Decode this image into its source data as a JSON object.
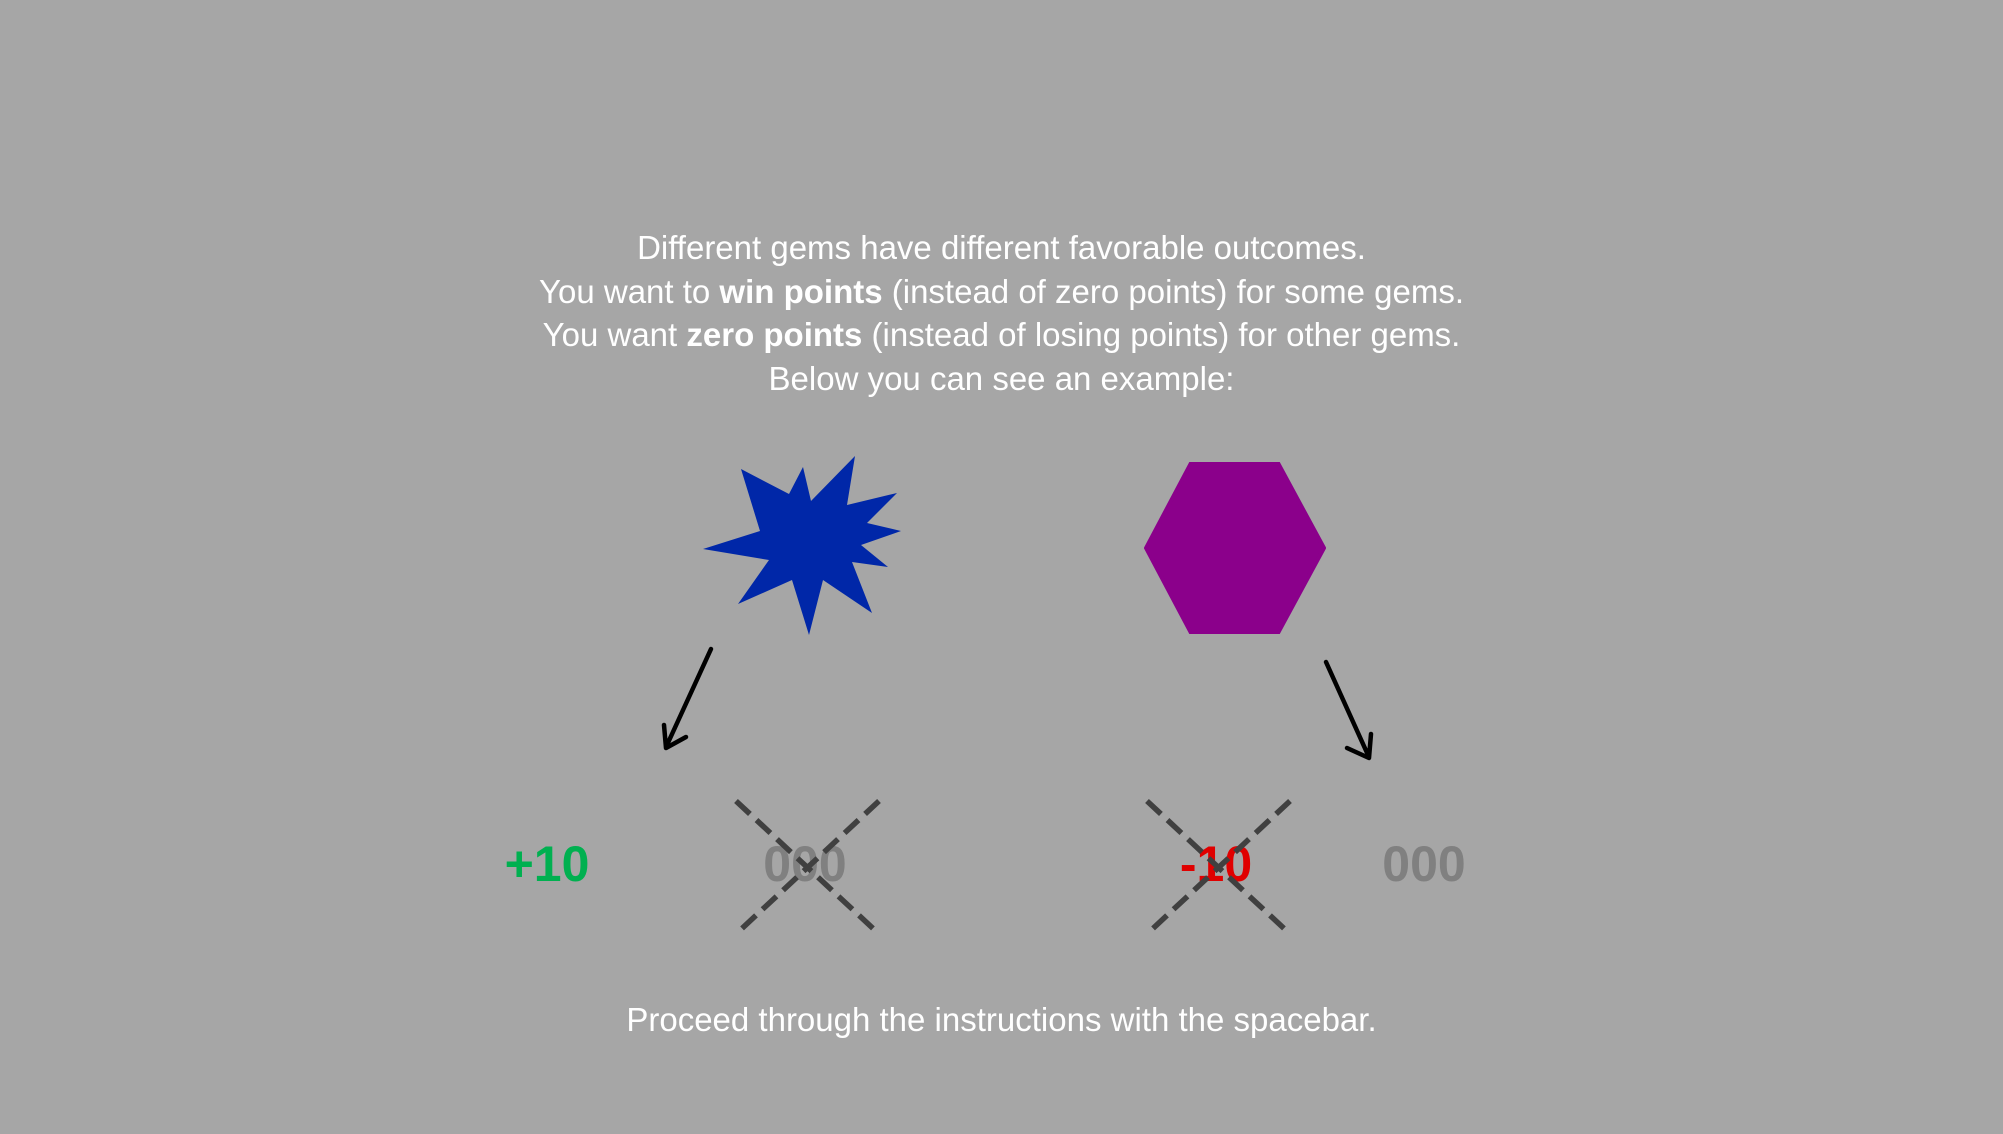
{
  "instructions": {
    "line1": "Different gems have different favorable outcomes.",
    "line2_pre": "You want to ",
    "line2_bold": "win points",
    "line2_post": " (instead of zero points) for some gems.",
    "line3_pre": "You want ",
    "line3_bold": "zero points",
    "line3_post": " (instead of losing points) for other gems.",
    "line4": "Below you can see an example:"
  },
  "gems": {
    "left": {
      "icon": "starburst-gem-icon",
      "color": "#0027a8"
    },
    "right": {
      "icon": "hexagon-gem-icon",
      "color": "#8b008b"
    }
  },
  "outcomes": {
    "left_win": {
      "text": "+10",
      "color": "#00b050"
    },
    "left_zero_crossed": {
      "text": "000",
      "color": "#808080"
    },
    "right_loss_crossed": {
      "text": "-10",
      "color": "#e00000"
    },
    "right_zero": {
      "text": "000",
      "color": "#808080"
    }
  },
  "footer": {
    "text": "Proceed through the instructions with the spacebar."
  }
}
